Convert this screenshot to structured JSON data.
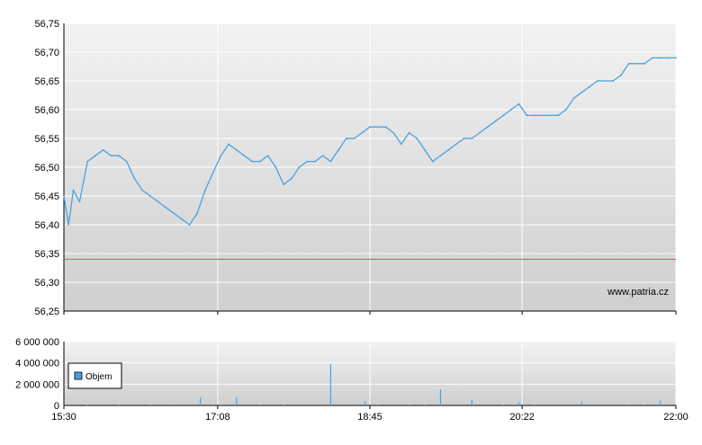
{
  "watermark": "www.patria.cz",
  "colors": {
    "price_line": "#4aa3df",
    "reference_line": "#d9534f",
    "volume_bar": "#4aa3df",
    "grid": "#ffffff",
    "plot_bg_top": "#f2f2f2",
    "plot_bg_bottom": "#cfcfcf",
    "legend_swatch": "#4aa3df"
  },
  "chart_data": [
    {
      "type": "line",
      "title": "",
      "xlabel": "",
      "ylabel": "",
      "x_ticks": [
        "15:30",
        "17:08",
        "18:45",
        "20:22",
        "22:00"
      ],
      "x_range": [
        "15:30",
        "22:00"
      ],
      "y_ticks": [
        "56,25",
        "56,30",
        "56,35",
        "56,40",
        "56,45",
        "56,50",
        "56,55",
        "56,60",
        "56,65",
        "56,70",
        "56,75"
      ],
      "ylim": [
        56.25,
        56.75
      ],
      "grid": true,
      "reference_line": {
        "value": 56.34
      },
      "series": [
        {
          "x": [
            "15:30",
            "15:33",
            "15:36",
            "15:40",
            "15:45",
            "15:50",
            "15:55",
            "16:00",
            "16:05",
            "16:10",
            "16:15",
            "16:20",
            "16:25",
            "16:30",
            "16:35",
            "16:40",
            "16:45",
            "16:50",
            "16:55",
            "17:00",
            "17:05",
            "17:10",
            "17:15",
            "17:20",
            "17:25",
            "17:30",
            "17:35",
            "17:40",
            "17:45",
            "17:50",
            "17:55",
            "18:00",
            "18:05",
            "18:10",
            "18:15",
            "18:20",
            "18:25",
            "18:30",
            "18:35",
            "18:40",
            "18:45",
            "18:50",
            "18:55",
            "19:00",
            "19:05",
            "19:10",
            "19:15",
            "19:20",
            "19:25",
            "19:30",
            "19:35",
            "19:40",
            "19:45",
            "19:50",
            "19:55",
            "20:00",
            "20:05",
            "20:10",
            "20:15",
            "20:20",
            "20:25",
            "20:30",
            "20:35",
            "20:40",
            "20:45",
            "20:50",
            "20:55",
            "21:00",
            "21:05",
            "21:10",
            "21:15",
            "21:20",
            "21:25",
            "21:30",
            "21:35",
            "21:40",
            "21:45",
            "21:50",
            "21:55",
            "22:00"
          ],
          "values": [
            56.45,
            56.4,
            56.46,
            56.44,
            56.51,
            56.52,
            56.53,
            56.52,
            56.52,
            56.51,
            56.48,
            56.46,
            56.45,
            56.44,
            56.43,
            56.42,
            56.41,
            56.4,
            56.42,
            56.46,
            56.49,
            56.52,
            56.54,
            56.53,
            56.52,
            56.51,
            56.51,
            56.52,
            56.5,
            56.47,
            56.48,
            56.5,
            56.51,
            56.51,
            56.52,
            56.51,
            56.53,
            56.55,
            56.55,
            56.56,
            56.57,
            56.57,
            56.57,
            56.56,
            56.54,
            56.56,
            56.55,
            56.53,
            56.51,
            56.52,
            56.53,
            56.54,
            56.55,
            56.55,
            56.56,
            56.57,
            56.58,
            56.59,
            56.6,
            56.61,
            56.59,
            56.59,
            56.59,
            56.59,
            56.59,
            56.6,
            56.62,
            56.63,
            56.64,
            56.65,
            56.65,
            56.65,
            56.66,
            56.68,
            56.68,
            56.68,
            56.69,
            56.69,
            56.69,
            56.69
          ]
        }
      ]
    },
    {
      "type": "bar",
      "title": "",
      "xlabel": "",
      "ylabel": "",
      "x_ticks": [
        "15:30",
        "17:08",
        "18:45",
        "20:22",
        "22:00"
      ],
      "x_range": [
        "15:30",
        "22:00"
      ],
      "y_ticks": [
        "0",
        "2 000 000",
        "4 000 000",
        "6 000 000"
      ],
      "ylim": [
        0,
        6000000
      ],
      "grid": true,
      "legend": {
        "entries": [
          "Objem"
        ],
        "position": "left"
      },
      "series": [
        {
          "name": "Objem",
          "x": [
            "15:30",
            "15:45",
            "16:05",
            "16:25",
            "16:40",
            "16:50",
            "16:57",
            "17:05",
            "17:10",
            "17:20",
            "17:35",
            "17:50",
            "18:00",
            "18:10",
            "18:20",
            "18:30",
            "18:42",
            "18:50",
            "19:00",
            "19:10",
            "19:20",
            "19:30",
            "19:40",
            "19:50",
            "20:00",
            "20:10",
            "20:20",
            "20:30",
            "20:40",
            "20:50",
            "21:00",
            "21:10",
            "21:20",
            "21:30",
            "21:40",
            "21:50",
            "21:55"
          ],
          "values": [
            40000,
            30000,
            60000,
            50000,
            80000,
            90000,
            750000,
            60000,
            80000,
            750000,
            70000,
            60000,
            120000,
            90000,
            3900000,
            80000,
            350000,
            60000,
            100000,
            80000,
            60000,
            1500000,
            70000,
            550000,
            80000,
            60000,
            300000,
            70000,
            100000,
            90000,
            350000,
            80000,
            150000,
            70000,
            60000,
            480000,
            100000
          ]
        }
      ]
    }
  ]
}
